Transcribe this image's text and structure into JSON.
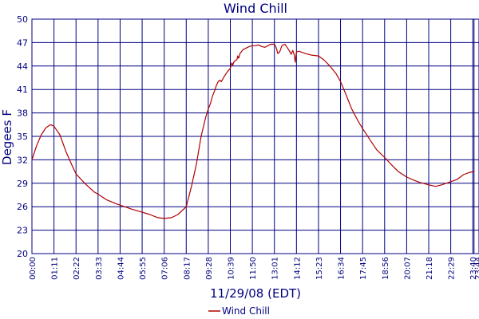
{
  "chart_data": {
    "type": "line",
    "title": "Wind Chill",
    "xlabel": "11/29/08 (EDT)",
    "ylabel": "Degees F",
    "ylim": [
      20,
      50
    ],
    "y_ticks": [
      "20",
      "23",
      "26",
      "29",
      "32",
      "35",
      "38",
      "41",
      "44",
      "47",
      "50"
    ],
    "x_ticks": [
      "00:00",
      "01:11",
      "02:22",
      "03:33",
      "04:44",
      "05:55",
      "07:06",
      "08:17",
      "09:28",
      "10:39",
      "11:50",
      "13:01",
      "14:12",
      "15:23",
      "16:34",
      "17:45",
      "18:56",
      "20:07",
      "21:18",
      "22:29",
      "23:40",
      "23:44"
    ],
    "grid": true,
    "legend_position": "bottom-center",
    "colors": {
      "series": "#b00000",
      "axis_text": "#000080",
      "grid": "#000080"
    },
    "series": [
      {
        "name": "Wind Chill",
        "x": [
          "00:00",
          "00:15",
          "00:30",
          "00:45",
          "01:00",
          "01:11",
          "01:30",
          "01:50",
          "02:10",
          "02:22",
          "02:50",
          "03:20",
          "03:33",
          "04:00",
          "04:30",
          "04:44",
          "05:20",
          "05:55",
          "06:20",
          "06:45",
          "07:06",
          "07:30",
          "07:50",
          "08:17",
          "08:35",
          "08:50",
          "09:05",
          "09:20",
          "09:28",
          "09:35",
          "09:42",
          "09:48",
          "09:54",
          "10:00",
          "10:05",
          "10:10",
          "10:20",
          "10:30",
          "10:39",
          "10:42",
          "10:44",
          "10:47",
          "10:50",
          "10:55",
          "11:00",
          "11:03",
          "11:06",
          "11:10",
          "11:20",
          "11:30",
          "11:40",
          "11:50",
          "12:00",
          "12:10",
          "12:20",
          "12:30",
          "12:40",
          "12:50",
          "13:01",
          "13:05",
          "13:08",
          "13:12",
          "13:18",
          "13:25",
          "13:35",
          "13:45",
          "13:50",
          "13:55",
          "14:00",
          "14:05",
          "14:08",
          "14:12",
          "14:20",
          "14:40",
          "15:00",
          "15:23",
          "15:40",
          "16:00",
          "16:20",
          "16:34",
          "16:50",
          "17:10",
          "17:30",
          "17:45",
          "18:10",
          "18:30",
          "18:56",
          "19:20",
          "19:40",
          "20:07",
          "20:30",
          "20:50",
          "21:18",
          "21:40",
          "22:00",
          "22:29",
          "22:50",
          "23:10",
          "23:30",
          "23:44"
        ],
        "values": [
          32.0,
          33.8,
          35.2,
          36.1,
          36.5,
          36.3,
          35.2,
          33.0,
          31.2,
          30.2,
          29.0,
          27.9,
          27.6,
          26.9,
          26.4,
          26.2,
          25.7,
          25.3,
          25.0,
          24.6,
          24.5,
          24.6,
          25.0,
          26.0,
          28.8,
          31.5,
          35.0,
          37.5,
          38.5,
          39.2,
          40.2,
          40.8,
          41.5,
          42.0,
          42.2,
          42.0,
          42.7,
          43.3,
          43.7,
          44.2,
          44.4,
          44.1,
          44.5,
          44.7,
          44.8,
          45.3,
          45.0,
          45.6,
          46.1,
          46.3,
          46.5,
          46.6,
          46.6,
          46.7,
          46.5,
          46.4,
          46.6,
          46.8,
          46.8,
          46.5,
          46.2,
          45.6,
          45.8,
          46.6,
          46.8,
          46.2,
          45.9,
          45.5,
          46.0,
          45.4,
          44.5,
          45.8,
          45.9,
          45.6,
          45.4,
          45.3,
          44.8,
          44.0,
          43.0,
          42.0,
          40.5,
          38.5,
          37.0,
          36.0,
          34.5,
          33.3,
          32.3,
          31.3,
          30.5,
          29.8,
          29.4,
          29.1,
          28.8,
          28.6,
          28.8,
          29.2,
          29.5,
          30.1,
          30.4,
          30.5
        ]
      }
    ]
  }
}
